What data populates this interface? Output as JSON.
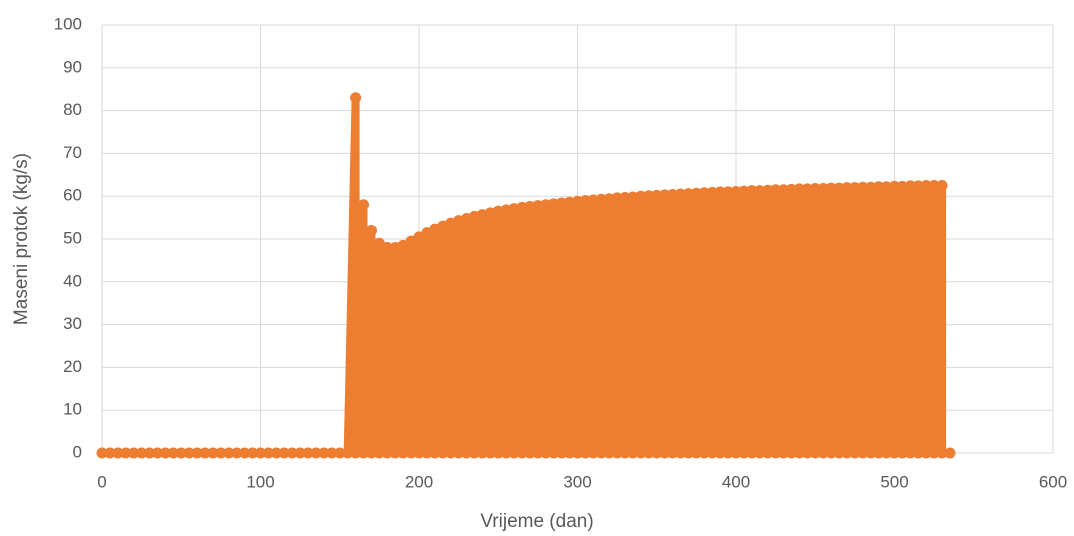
{
  "chart_data": {
    "type": "line",
    "x_label": "Vrijeme (dan)",
    "y_label": "Maseni protok (kg/s)",
    "xlim": [
      0,
      600
    ],
    "xticks": [
      0,
      100,
      200,
      300,
      400,
      500,
      600
    ],
    "ylim": [
      0,
      100
    ],
    "yticks": [
      0,
      10,
      20,
      30,
      40,
      50,
      60,
      70,
      80,
      90,
      100
    ],
    "grid": true,
    "series": [
      {
        "color": "#ed7d31",
        "x": [
          0,
          5,
          10,
          15,
          20,
          25,
          30,
          35,
          40,
          45,
          50,
          55,
          60,
          65,
          70,
          75,
          80,
          85,
          90,
          95,
          100,
          105,
          110,
          115,
          120,
          125,
          130,
          135,
          140,
          145,
          150,
          155,
          160,
          160,
          165,
          165,
          170,
          170,
          175,
          175,
          180,
          180,
          185,
          185,
          190,
          190,
          195,
          195,
          200,
          200,
          205,
          205,
          210,
          210,
          215,
          215,
          220,
          220,
          225,
          225,
          230,
          230,
          235,
          235,
          240,
          240,
          245,
          245,
          250,
          250,
          255,
          255,
          260,
          260,
          265,
          265,
          270,
          270,
          275,
          275,
          280,
          280,
          285,
          285,
          290,
          290,
          295,
          295,
          300,
          300,
          305,
          305,
          310,
          310,
          315,
          315,
          320,
          320,
          325,
          325,
          330,
          330,
          335,
          335,
          340,
          340,
          345,
          345,
          350,
          350,
          355,
          355,
          360,
          360,
          365,
          365,
          370,
          370,
          375,
          375,
          380,
          380,
          385,
          385,
          390,
          390,
          395,
          395,
          400,
          400,
          405,
          405,
          410,
          410,
          415,
          415,
          420,
          420,
          425,
          425,
          430,
          430,
          435,
          435,
          440,
          440,
          445,
          445,
          450,
          450,
          455,
          455,
          460,
          460,
          465,
          465,
          470,
          470,
          475,
          475,
          480,
          480,
          485,
          485,
          490,
          490,
          495,
          495,
          500,
          500,
          505,
          505,
          510,
          510,
          515,
          515,
          520,
          520,
          525,
          525,
          530,
          530,
          535
        ],
        "values": [
          0,
          0,
          0,
          0,
          0,
          0,
          0,
          0,
          0,
          0,
          0,
          0,
          0,
          0,
          0,
          0,
          0,
          0,
          0,
          0,
          0,
          0,
          0,
          0,
          0,
          0,
          0,
          0,
          0,
          0,
          0,
          0,
          83,
          0,
          58,
          0,
          52,
          0,
          49,
          0,
          48,
          0,
          48,
          0,
          48.5,
          0,
          49.5,
          0,
          50.5,
          0,
          51.5,
          0,
          52.3,
          0,
          53,
          0,
          53.7,
          0,
          54.3,
          0,
          54.8,
          0,
          55.3,
          0,
          55.7,
          0,
          56.1,
          0,
          56.5,
          0,
          56.8,
          0,
          57.1,
          0,
          57.4,
          0,
          57.6,
          0,
          57.8,
          0,
          58,
          0,
          58.2,
          0,
          58.4,
          0,
          58.6,
          0,
          58.8,
          0,
          59,
          0,
          59.1,
          0,
          59.3,
          0,
          59.4,
          0,
          59.6,
          0,
          59.7,
          0,
          59.8,
          0,
          60,
          0,
          60.1,
          0,
          60.2,
          0,
          60.3,
          0,
          60.4,
          0,
          60.5,
          0,
          60.6,
          0,
          60.7,
          0,
          60.8,
          0,
          60.9,
          0,
          61,
          0,
          61,
          0,
          61.1,
          0,
          61.2,
          0,
          61.3,
          0,
          61.3,
          0,
          61.4,
          0,
          61.5,
          0,
          61.5,
          0,
          61.6,
          0,
          61.7,
          0,
          61.7,
          0,
          61.8,
          0,
          61.8,
          0,
          61.9,
          0,
          61.9,
          0,
          62,
          0,
          62,
          0,
          62.1,
          0,
          62.1,
          0,
          62.2,
          0,
          62.2,
          0,
          62.3,
          0,
          62.3,
          0,
          62.4,
          0,
          62.4,
          0,
          62.5,
          0,
          62.5,
          0,
          62.5,
          0,
          0
        ]
      }
    ]
  }
}
